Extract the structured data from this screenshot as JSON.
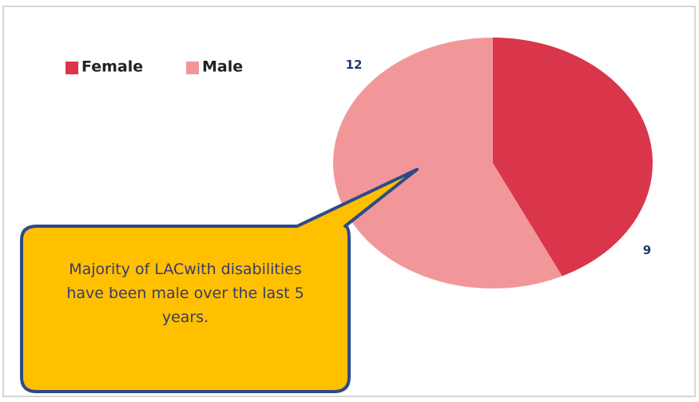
{
  "chart_data": {
    "type": "pie",
    "categories": [
      "Female",
      "Male"
    ],
    "values": [
      9,
      12
    ],
    "colors": [
      "#d9364b",
      "#f29799"
    ],
    "legend": "top-left",
    "annotation": "Majority of LACwith disabilities have been male over the last 5 years."
  }
}
